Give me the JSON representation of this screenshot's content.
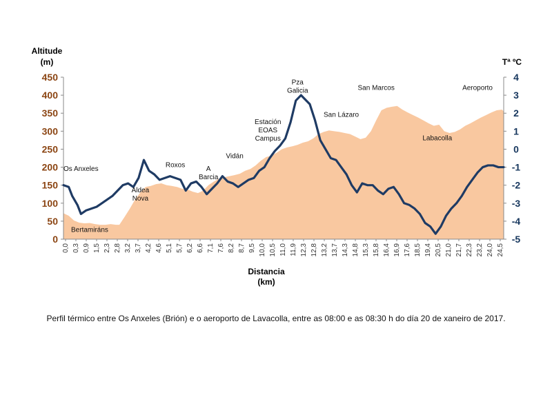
{
  "chart_data": {
    "type": "area+line",
    "left_axis": {
      "title_line1": "Altitude",
      "title_line2": "(m)",
      "range": [
        0,
        450
      ],
      "ticks": [
        0,
        50,
        100,
        150,
        200,
        250,
        300,
        350,
        400,
        450
      ],
      "color": "#8B4513"
    },
    "right_axis": {
      "title": "Tª ºC",
      "range": [
        -5,
        4
      ],
      "ticks": [
        4,
        3,
        2,
        1,
        0,
        -1,
        -2,
        -3,
        -4,
        -5
      ],
      "color": "#17375E"
    },
    "x_axis": {
      "title_line1": "Distancia",
      "title_line2": "(km)",
      "range": [
        0,
        25.2
      ],
      "tick_labels": [
        "0,0",
        "0,3",
        "0,9",
        "1,5",
        "2,3",
        "2,8",
        "3,2",
        "3,7",
        "4,2",
        "4,6",
        "5,1",
        "5,7",
        "6,2",
        "6,6",
        "7,1",
        "7,6",
        "8,2",
        "8,7",
        "9,5",
        "10,0",
        "10,5",
        "11,0",
        "11,9",
        "12,3",
        "12,8",
        "13,2",
        "13,7",
        "14,3",
        "14,8",
        "15,3",
        "15,8",
        "16,4",
        "16,9",
        "17,6",
        "18,5",
        "19,4",
        "20,5",
        "21,0",
        "21,7",
        "22,3",
        "23,2",
        "24,0",
        "24,5"
      ]
    },
    "altitude_series": {
      "color": "#F9C8A0",
      "x": [
        0,
        0.3,
        0.6,
        0.9,
        1.2,
        1.5,
        1.8,
        2.1,
        2.4,
        2.7,
        3.0,
        3.2,
        3.5,
        3.8,
        4.1,
        4.4,
        4.7,
        5.0,
        5.3,
        5.6,
        5.9,
        6.2,
        6.5,
        6.8,
        7.1,
        7.4,
        7.7,
        8.0,
        8.3,
        8.6,
        8.9,
        9.2,
        9.5,
        9.8,
        10.1,
        10.4,
        10.7,
        11.0,
        11.3,
        11.6,
        11.9,
        12.2,
        12.5,
        12.8,
        13.1,
        13.4,
        13.7,
        14.0,
        14.3,
        14.6,
        14.9,
        15.2,
        15.5,
        15.8,
        16.1,
        16.4,
        16.7,
        17.0,
        17.3,
        17.6,
        17.9,
        18.2,
        18.5,
        18.8,
        19.1,
        19.4,
        19.7,
        20.0,
        20.3,
        20.6,
        20.9,
        21.2,
        21.5,
        21.8,
        22.1,
        22.4,
        22.7,
        23.0,
        23.3,
        23.6,
        23.9,
        24.2,
        24.5,
        24.8,
        25.1,
        25.2
      ],
      "y": [
        72,
        65,
        52,
        46,
        44,
        45,
        42,
        40,
        40,
        42,
        40,
        40,
        62,
        85,
        110,
        130,
        145,
        148,
        153,
        155,
        150,
        148,
        145,
        140,
        138,
        132,
        128,
        135,
        150,
        160,
        168,
        172,
        175,
        178,
        182,
        190,
        195,
        205,
        218,
        228,
        232,
        240,
        250,
        255,
        258,
        262,
        268,
        272,
        280,
        292,
        298,
        302,
        300,
        298,
        295,
        292,
        285,
        278,
        282,
        300,
        330,
        358,
        365,
        368,
        370,
        360,
        352,
        345,
        338,
        330,
        322,
        315,
        318,
        300,
        295,
        298,
        305,
        315,
        322,
        330,
        338,
        345,
        352,
        358,
        360,
        355
      ]
    },
    "temperature_series": {
      "color": "#1F3B64",
      "x": [
        0,
        0.3,
        0.5,
        0.8,
        1.0,
        1.3,
        1.6,
        1.9,
        2.2,
        2.5,
        2.8,
        3.1,
        3.4,
        3.7,
        4.0,
        4.3,
        4.6,
        4.9,
        5.2,
        5.5,
        5.8,
        6.1,
        6.4,
        6.7,
        7.0,
        7.3,
        7.6,
        7.9,
        8.2,
        8.5,
        8.8,
        9.1,
        9.4,
        9.7,
        10.0,
        10.3,
        10.6,
        10.9,
        11.2,
        11.5,
        11.8,
        12.1,
        12.4,
        12.7,
        13.0,
        13.3,
        13.6,
        13.8,
        14.1,
        14.4,
        14.7,
        15.0,
        15.3,
        15.6,
        15.9,
        16.2,
        16.5,
        16.8,
        17.1,
        17.4,
        17.7,
        18.0,
        18.3,
        18.6,
        18.9,
        19.2,
        19.5,
        19.8,
        20.1,
        20.4,
        20.7,
        21.0,
        21.3,
        21.6,
        21.9,
        22.2,
        22.5,
        22.8,
        23.1,
        23.4,
        23.7,
        24.0,
        24.3,
        24.6,
        24.9,
        25.2
      ],
      "y": [
        -2.0,
        -2.1,
        -2.6,
        -3.1,
        -3.6,
        -3.4,
        -3.3,
        -3.2,
        -3.0,
        -2.8,
        -2.6,
        -2.3,
        -2.0,
        -1.9,
        -2.1,
        -1.6,
        -0.6,
        -1.2,
        -1.4,
        -1.7,
        -1.6,
        -1.5,
        -1.6,
        -1.7,
        -2.3,
        -1.9,
        -1.8,
        -2.1,
        -2.5,
        -2.2,
        -1.9,
        -1.5,
        -1.8,
        -1.9,
        -2.1,
        -1.9,
        -1.7,
        -1.6,
        -1.2,
        -1.0,
        -0.5,
        -0.1,
        0.2,
        0.6,
        1.5,
        2.7,
        3.0,
        2.8,
        2.5,
        1.6,
        0.5,
        0.0,
        -0.5,
        -0.6,
        -1.0,
        -1.4,
        -2.0,
        -2.4,
        -1.9,
        -2.0,
        -2.0,
        -2.3,
        -2.5,
        -2.2,
        -2.1,
        -2.5,
        -3.0,
        -3.1,
        -3.3,
        -3.6,
        -4.1,
        -4.3,
        -4.7,
        -4.3,
        -3.7,
        -3.3,
        -3.0,
        -2.6,
        -2.1,
        -1.7,
        -1.3,
        -1.0,
        -0.9,
        -0.9,
        -1.0,
        -1.0
      ]
    },
    "places": [
      {
        "lines": [
          "Os Anxeles"
        ],
        "x": 0.0,
        "y_alt": 190
      },
      {
        "lines": [
          "Bertamiráns"
        ],
        "x": 1.5,
        "y_alt": 20
      },
      {
        "lines": [
          "Aldea",
          "Nova"
        ],
        "x": 4.4,
        "y_alt": 130
      },
      {
        "lines": [
          "Roxos"
        ],
        "x": 6.4,
        "y_alt": 200
      },
      {
        "lines": [
          "A",
          "Barcia"
        ],
        "x": 8.3,
        "y_alt": 190
      },
      {
        "lines": [
          "Vidán"
        ],
        "x": 9.8,
        "y_alt": 225
      },
      {
        "lines": [
          "Estación",
          "EOAS",
          "Campus"
        ],
        "x": 11.7,
        "y_alt": 320
      },
      {
        "lines": [
          "Pza",
          "Galicia"
        ],
        "x": 13.4,
        "y_alt": 430
      },
      {
        "lines": [
          "San Lázaro"
        ],
        "x": 15.9,
        "y_alt": 340
      },
      {
        "lines": [
          "San Marcos"
        ],
        "x": 17.9,
        "y_alt": 415
      },
      {
        "lines": [
          "Labacolla"
        ],
        "x": 21.4,
        "y_alt": 275
      },
      {
        "lines": [
          "Aeroporto"
        ],
        "x": 23.7,
        "y_alt": 415
      }
    ]
  },
  "caption": "Perfil térmico entre Os Anxeles (Brión) e o aeroporto de Lavacolla, entre as 08:00 e as 08:30 h do día 20 de xaneiro de 2017."
}
